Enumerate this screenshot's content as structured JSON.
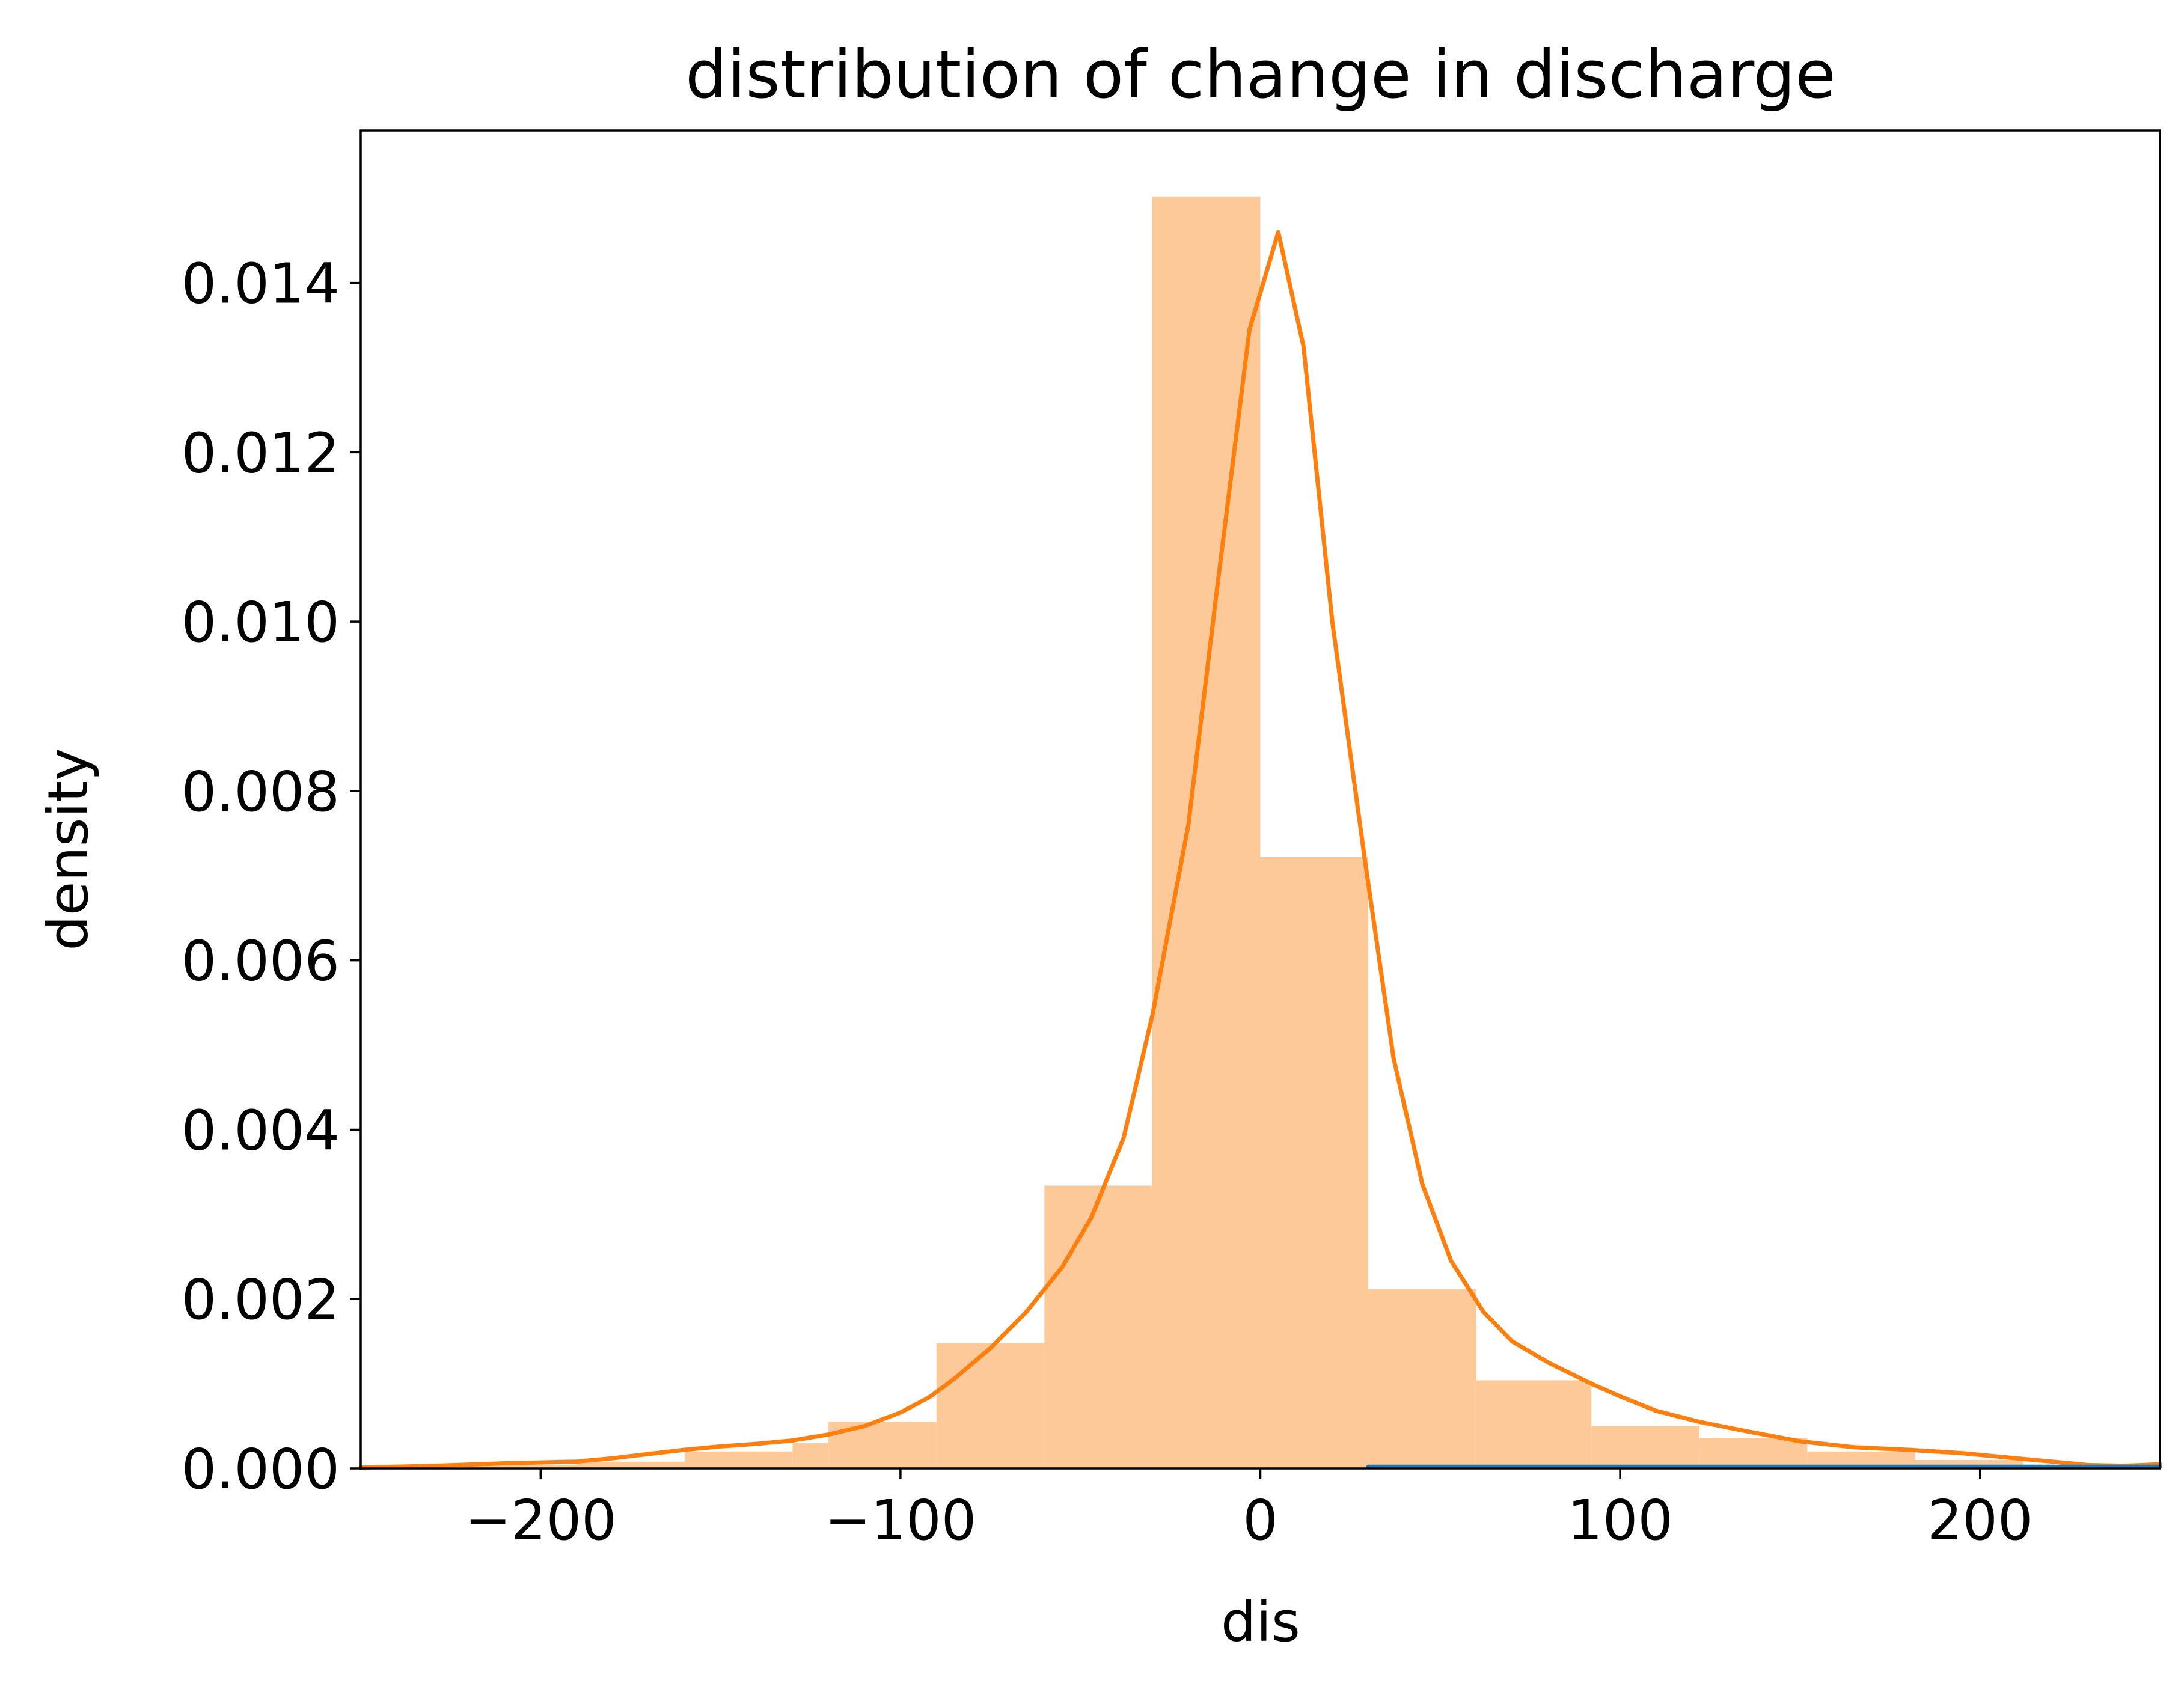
{
  "chart_data": {
    "type": "bar",
    "title": "distribution of change in discharge",
    "xlabel": "dis",
    "ylabel": "density",
    "xlim": [
      -250,
      250
    ],
    "ylim": [
      0,
      0.0158
    ],
    "grid": false,
    "xticks": [
      -200,
      -100,
      0,
      100,
      200
    ],
    "xtick_labels": [
      "−200",
      "−100",
      "0",
      "100",
      "200"
    ],
    "yticks": [
      0,
      0.002,
      0.004,
      0.006,
      0.008,
      0.01,
      0.012,
      0.014
    ],
    "ytick_labels": [
      "0.000",
      "0.002",
      "0.004",
      "0.006",
      "0.008",
      "0.010",
      "0.012",
      "0.014"
    ],
    "histogram": {
      "color": "#fdc998",
      "bin_edges": [
        -250,
        -220,
        -190,
        -160,
        -130,
        -120,
        -90,
        -60,
        -30,
        0,
        30,
        60,
        92,
        122,
        152,
        182,
        212,
        250
      ],
      "values": [
        1e-05,
        4e-05,
        8e-05,
        0.0002,
        0.0003,
        0.00055,
        0.00148,
        0.00334,
        0.01502,
        0.00722,
        0.00212,
        0.00104,
        0.0005,
        0.00036,
        0.0002,
        0.0001,
        3e-05
      ]
    },
    "series": [
      {
        "color": "#ff7f0e",
        "x": [
          -250,
          -230,
          -210,
          -190,
          -180,
          -170,
          -160,
          -150,
          -140,
          -130,
          -120,
          -110,
          -100,
          -92,
          -85,
          -75,
          -65,
          -55,
          -47,
          -38,
          -30,
          -20,
          -12,
          -3,
          5,
          12,
          20,
          29,
          37,
          45,
          53,
          62,
          70,
          80,
          92,
          100,
          110,
          122,
          135,
          150,
          165,
          180,
          195,
          210,
          220,
          230,
          240,
          250
        ],
        "y": [
          1e-05,
          3e-05,
          6e-05,
          8e-05,
          0.00012,
          0.00017,
          0.00022,
          0.00026,
          0.00029,
          0.00033,
          0.0004,
          0.0005,
          0.00066,
          0.00084,
          0.00106,
          0.00142,
          0.00185,
          0.00238,
          0.00296,
          0.0039,
          0.00535,
          0.0076,
          0.0104,
          0.01345,
          0.0146,
          0.01325,
          0.01,
          0.0072,
          0.00485,
          0.00336,
          0.00245,
          0.00185,
          0.0015,
          0.00125,
          0.001,
          0.00085,
          0.00068,
          0.00055,
          0.00044,
          0.00032,
          0.00025,
          0.00022,
          0.00018,
          0.00012,
          8e-05,
          4e-05,
          3e-05,
          5e-05
        ]
      },
      {
        "color": "#1f77b4",
        "x": [
          30,
          90,
          150,
          210,
          250
        ],
        "y": [
          2e-05,
          2e-05,
          2e-05,
          2e-05,
          2e-05
        ]
      }
    ]
  }
}
